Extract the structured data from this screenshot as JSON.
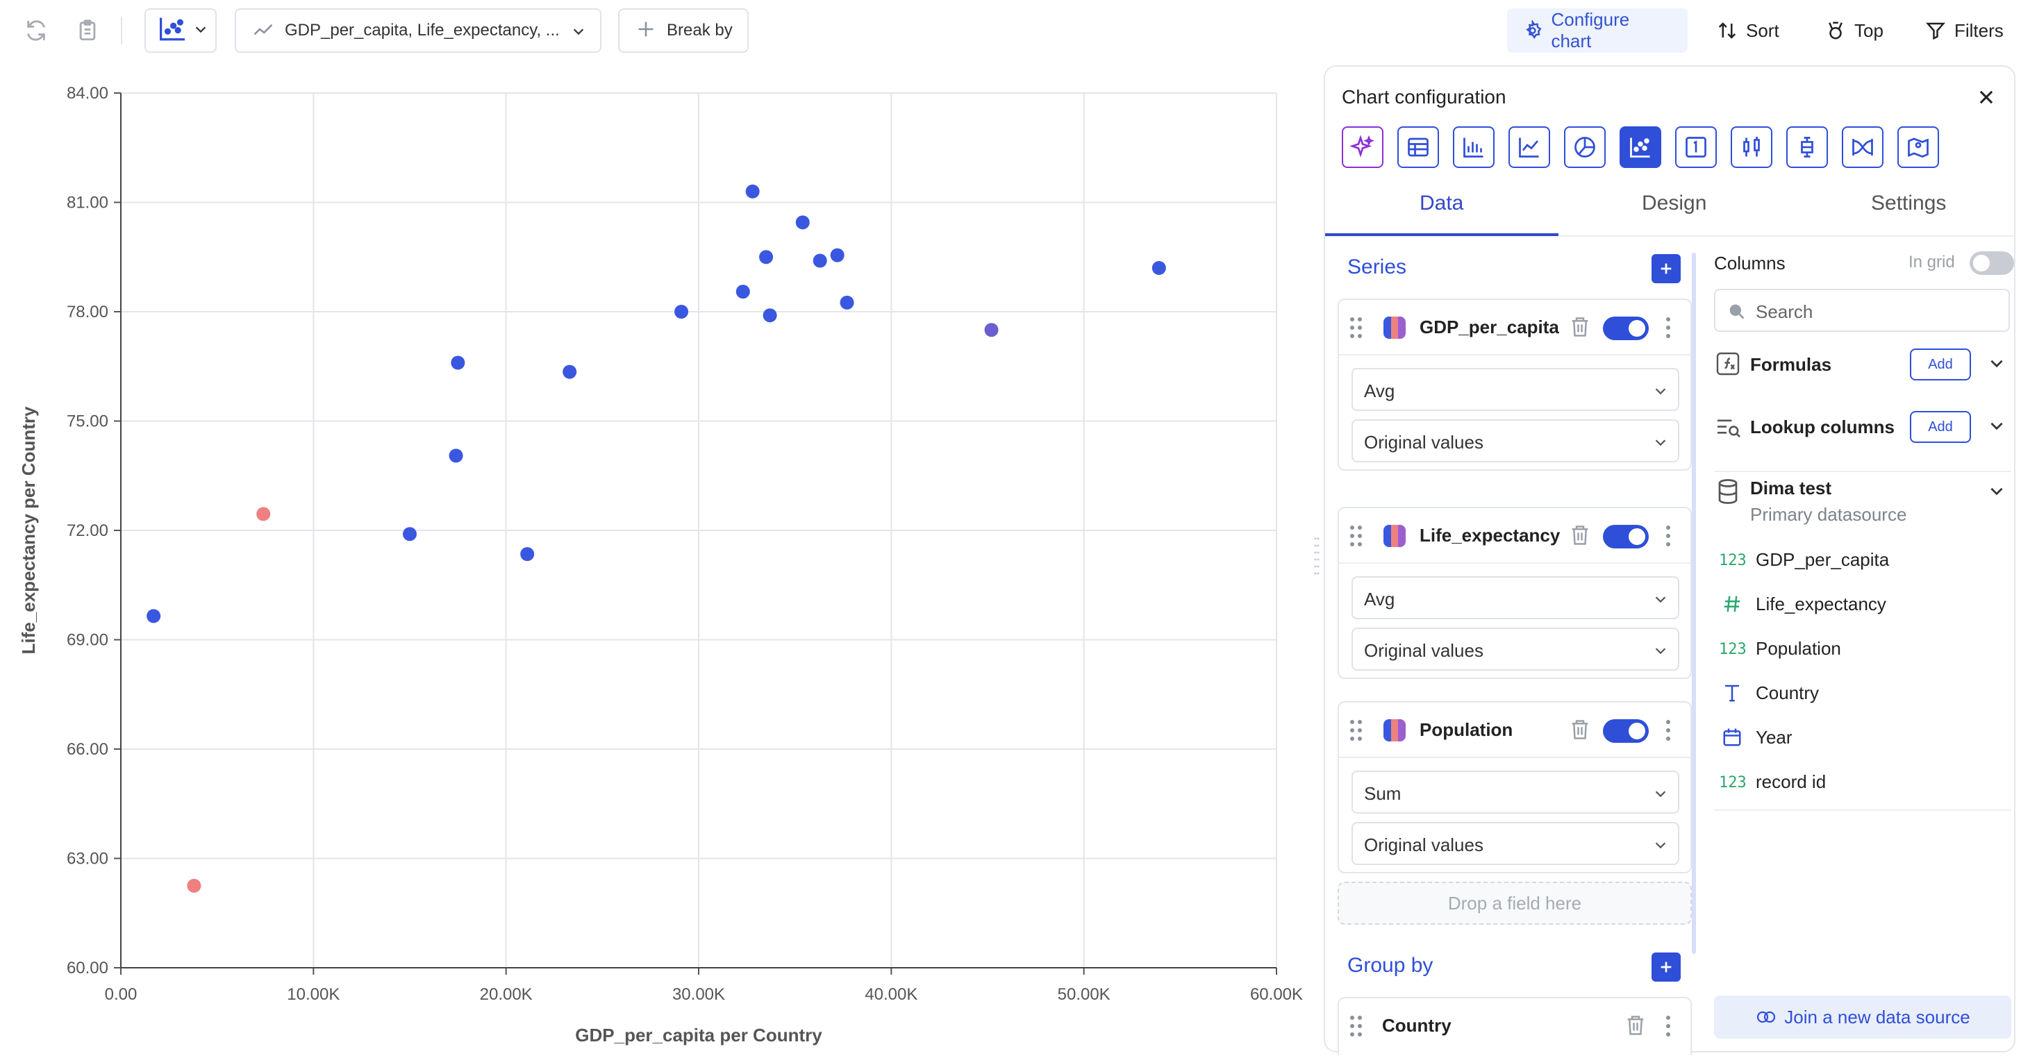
{
  "toolbar": {
    "measures_label": "GDP_per_capita, Life_expectancy,  ...",
    "break_by_label": "Break by",
    "configure_label": "Configure chart",
    "sort_label": "Sort",
    "top_label": "Top",
    "filters_label": "Filters"
  },
  "chart_data": {
    "type": "scatter",
    "xlabel": "GDP_per_capita per Country",
    "ylabel": "Life_expectancy per Country",
    "xlim": [
      0,
      60000
    ],
    "ylim": [
      60,
      84
    ],
    "x_ticks": [
      "0.00",
      "10.00K",
      "20.00K",
      "30.00K",
      "40.00K",
      "50.00K",
      "60.00K"
    ],
    "y_ticks": [
      "60.00",
      "63.00",
      "66.00",
      "69.00",
      "72.00",
      "75.00",
      "78.00",
      "81.00",
      "84.00"
    ],
    "grid": true,
    "points": [
      {
        "x": 1700,
        "y": 69.65,
        "color": "#3a57e0"
      },
      {
        "x": 3800,
        "y": 62.25,
        "color": "#ee8080"
      },
      {
        "x": 7400,
        "y": 72.45,
        "color": "#ee8080"
      },
      {
        "x": 15000,
        "y": 71.9,
        "color": "#3a57e0"
      },
      {
        "x": 17400,
        "y": 74.05,
        "color": "#3a57e0"
      },
      {
        "x": 17500,
        "y": 76.6,
        "color": "#3a57e0"
      },
      {
        "x": 21100,
        "y": 71.35,
        "color": "#3a57e0"
      },
      {
        "x": 23300,
        "y": 76.35,
        "color": "#3a57e0"
      },
      {
        "x": 29100,
        "y": 78.0,
        "color": "#3a57e0"
      },
      {
        "x": 32300,
        "y": 78.55,
        "color": "#3a57e0"
      },
      {
        "x": 32800,
        "y": 81.3,
        "color": "#3a57e0"
      },
      {
        "x": 33500,
        "y": 79.5,
        "color": "#3a57e0"
      },
      {
        "x": 33700,
        "y": 77.9,
        "color": "#3a57e0"
      },
      {
        "x": 35400,
        "y": 80.45,
        "color": "#3a57e0"
      },
      {
        "x": 36300,
        "y": 79.4,
        "color": "#3a57e0"
      },
      {
        "x": 37200,
        "y": 79.55,
        "color": "#3a57e0"
      },
      {
        "x": 37700,
        "y": 78.25,
        "color": "#3a57e0"
      },
      {
        "x": 45200,
        "y": 77.5,
        "color": "#6a5fd0"
      },
      {
        "x": 53900,
        "y": 79.2,
        "color": "#3a57e0"
      }
    ]
  },
  "config": {
    "title": "Chart configuration",
    "tabs": [
      "Data",
      "Design",
      "Settings"
    ],
    "series_title": "Series",
    "series": [
      {
        "name": "GDP_per_capita",
        "agg": "Avg",
        "values": "Original values"
      },
      {
        "name": "Life_expectancy",
        "agg": "Avg",
        "values": "Original values"
      },
      {
        "name": "Population",
        "agg": "Sum",
        "values": "Original values"
      }
    ],
    "dropzone": "Drop a field here",
    "group_by_title": "Group by",
    "group_by": [
      {
        "name": "Country"
      }
    ],
    "columns_title": "Columns",
    "in_grid_label": "In grid",
    "search_placeholder": "Search",
    "formulas_label": "Formulas",
    "lookup_label": "Lookup columns",
    "add_label": "Add",
    "datasource_name": "Dima test",
    "datasource_sub": "Primary datasource",
    "fields": [
      {
        "icon": "123",
        "name": "GDP_per_capita"
      },
      {
        "icon": "#",
        "name": "Life_expectancy"
      },
      {
        "icon": "123",
        "name": "Population"
      },
      {
        "icon": "T",
        "name": "Country"
      },
      {
        "icon": "calendar",
        "name": "Year"
      },
      {
        "icon": "123",
        "name": "record id"
      }
    ],
    "join_label": "Join a new data source"
  },
  "colors": {
    "accent": "#2f4fd8",
    "ai": "#8b2fd8",
    "series_blue": "#3a57e0",
    "series_red": "#ee8080"
  }
}
